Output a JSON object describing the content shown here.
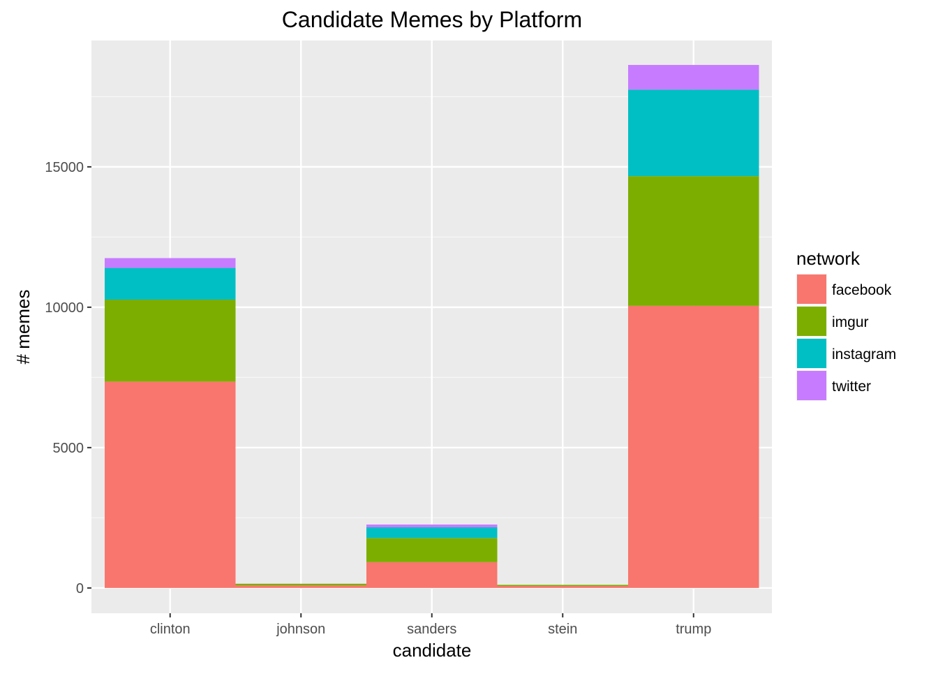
{
  "chart_data": {
    "type": "bar",
    "stacked": true,
    "title": "Candidate Memes by Platform",
    "xlabel": "candidate",
    "ylabel": "# memes",
    "categories": [
      "clinton",
      "johnson",
      "sanders",
      "stein",
      "trump"
    ],
    "yticks": [
      0,
      5000,
      10000,
      15000
    ],
    "ylim": [
      -900,
      19500
    ],
    "grid": true,
    "legend": {
      "title": "network",
      "position": "right"
    },
    "series": [
      {
        "name": "facebook",
        "color": "#F8766D",
        "values": [
          7350,
          90,
          920,
          70,
          10050
        ]
      },
      {
        "name": "imgur",
        "color": "#7CAE00",
        "values": [
          2920,
          60,
          860,
          40,
          4620
        ]
      },
      {
        "name": "instagram",
        "color": "#00BFC4",
        "values": [
          1130,
          0,
          380,
          0,
          3080
        ]
      },
      {
        "name": "twitter",
        "color": "#C77CFF",
        "values": [
          350,
          0,
          100,
          0,
          880
        ]
      }
    ]
  }
}
